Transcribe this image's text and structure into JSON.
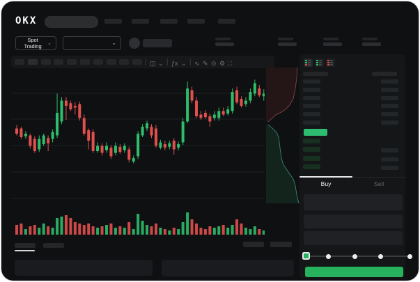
{
  "header": {
    "logo_text": "OKX",
    "nav_item_count": 5
  },
  "market_bar": {
    "pair_selector_label": "Spot Trading",
    "chevron": "⌄",
    "stat_group_count": 4
  },
  "chart_toolbar": {
    "interval_button_count": 10,
    "active_interval_index": 1,
    "separator": "|",
    "icons": [
      {
        "name": "candle-type-icon",
        "glyph": "◫"
      },
      {
        "name": "chevron-down-icon",
        "glyph": "⌄"
      },
      {
        "name": "indicators-icon",
        "glyph": "ƒx"
      },
      {
        "name": "chevron-down-icon",
        "glyph": "⌄"
      },
      {
        "name": "line-tool-icon",
        "glyph": "∿"
      },
      {
        "name": "draw-tool-icon",
        "glyph": "✎"
      },
      {
        "name": "camera-icon",
        "glyph": "⊙"
      },
      {
        "name": "settings-icon",
        "glyph": "⚙"
      },
      {
        "name": "fullscreen-icon",
        "glyph": "⛶"
      }
    ]
  },
  "orderbook": {
    "view_modes": [
      {
        "name": "book-both-icon",
        "colors": [
          "#2ebd6b",
          "#e2504e"
        ],
        "active": true
      },
      {
        "name": "book-buy-icon",
        "colors": [
          "#2ebd6b",
          "#2ebd6b"
        ],
        "active": false
      },
      {
        "name": "book-sell-icon",
        "colors": [
          "#e2504e",
          "#e2504e"
        ],
        "active": false
      }
    ],
    "ask_row_count": 6,
    "bid_row_count": 4,
    "bid_rows_with_amount": [
      1,
      2,
      3
    ],
    "last_price_highlight_color": "#2ebd70"
  },
  "trade_panel": {
    "buy_tab_label": "Buy",
    "sell_tab_label": "Sell",
    "active_tab": "Buy",
    "field_count": 3,
    "slider_dot_count": 4,
    "buy_button_color": "#27b35e"
  },
  "bottom_bar": {
    "tab_count": 2,
    "active_tab_index": 0,
    "right_box_count": 2,
    "panel_count": 2
  },
  "colors": {
    "window_bg": "#0f1012",
    "panel_bg": "#141618",
    "candle_up": "#2ebd6b",
    "candle_down": "#e2504e",
    "grid_line": "#1d1f22",
    "depth_ask_fill": "#241517",
    "depth_ask_line": "#8a4a4a",
    "depth_bid_fill": "#13241c",
    "depth_bid_line": "#3f8f7c"
  },
  "chart_data": {
    "type": "candlestick",
    "title": "",
    "xlabel": "",
    "ylabel": "",
    "x_axis_labels": [],
    "y_axis_labels": [],
    "grid": true,
    "price_scale": [
      0,
      102
    ],
    "candles": [
      [
        46,
        50,
        38,
        40
      ],
      [
        46,
        48,
        34,
        36
      ],
      [
        37,
        43,
        34,
        40
      ],
      [
        38,
        40,
        23,
        26
      ],
      [
        34,
        37,
        18,
        20
      ],
      [
        22,
        38,
        19,
        34
      ],
      [
        28,
        40,
        26,
        38
      ],
      [
        35,
        38,
        20,
        29
      ],
      [
        34,
        45,
        30,
        42
      ],
      [
        38,
        86,
        35,
        64
      ],
      [
        54,
        82,
        51,
        78
      ],
      [
        78,
        82,
        56,
        72
      ],
      [
        75,
        78,
        66,
        68
      ],
      [
        72,
        76,
        62,
        70
      ],
      [
        74,
        77,
        55,
        58
      ],
      [
        58,
        62,
        38,
        40
      ],
      [
        44,
        46,
        22,
        32
      ],
      [
        42,
        45,
        18,
        20
      ],
      [
        20,
        30,
        18,
        26
      ],
      [
        26,
        29,
        15,
        18
      ],
      [
        21,
        30,
        18,
        26
      ],
      [
        24,
        27,
        11,
        14
      ],
      [
        18,
        30,
        15,
        26
      ],
      [
        25,
        28,
        17,
        19
      ],
      [
        21,
        29,
        18,
        26
      ],
      [
        22,
        25,
        7,
        10
      ],
      [
        8,
        15,
        6,
        12
      ],
      [
        14,
        43,
        11,
        40
      ],
      [
        38,
        51,
        36,
        48
      ],
      [
        46,
        55,
        43,
        52
      ],
      [
        48,
        51,
        35,
        38
      ],
      [
        46,
        50,
        24,
        26
      ],
      [
        24,
        33,
        22,
        30
      ],
      [
        28,
        32,
        21,
        24
      ],
      [
        25,
        32,
        22,
        29
      ],
      [
        32,
        35,
        16,
        22
      ],
      [
        24,
        31,
        21,
        28
      ],
      [
        30,
        58,
        27,
        54
      ],
      [
        54,
        100,
        52,
        92
      ],
      [
        90,
        94,
        75,
        78
      ],
      [
        78,
        82,
        58,
        60
      ],
      [
        62,
        66,
        56,
        58
      ],
      [
        64,
        67,
        57,
        59
      ],
      [
        60,
        63,
        48,
        54
      ],
      [
        58,
        66,
        55,
        62
      ],
      [
        58,
        70,
        55,
        66
      ],
      [
        66,
        70,
        60,
        62
      ],
      [
        63,
        72,
        61,
        68
      ],
      [
        66,
        92,
        63,
        88
      ],
      [
        90,
        94,
        74,
        76
      ],
      [
        80,
        83,
        70,
        72
      ],
      [
        74,
        82,
        71,
        78
      ],
      [
        78,
        92,
        75,
        88
      ],
      [
        86,
        102,
        83,
        98
      ],
      [
        92,
        96,
        82,
        84
      ],
      [
        83,
        91,
        78,
        86
      ]
    ],
    "volume": [
      14,
      16,
      8,
      12,
      14,
      10,
      16,
      12,
      10,
      24,
      26,
      28,
      24,
      18,
      16,
      14,
      16,
      12,
      10,
      12,
      14,
      16,
      10,
      12,
      10,
      18,
      8,
      30,
      20,
      14,
      12,
      16,
      10,
      8,
      6,
      10,
      8,
      18,
      32,
      22,
      16,
      10,
      8,
      12,
      10,
      12,
      14,
      10,
      14,
      22,
      16,
      10,
      8,
      12,
      8,
      6
    ],
    "depth": {
      "asks": [
        [
          47,
          2
        ],
        [
          46,
          17
        ],
        [
          44,
          32
        ],
        [
          41,
          47
        ],
        [
          35,
          57
        ],
        [
          30,
          62
        ],
        [
          24,
          66
        ],
        [
          16,
          70
        ],
        [
          5,
          80
        ]
      ],
      "bids": [
        [
          5,
          84
        ],
        [
          12,
          90
        ],
        [
          17,
          95
        ],
        [
          20,
          102
        ],
        [
          22,
          117
        ],
        [
          24,
          132
        ],
        [
          27,
          142
        ],
        [
          34,
          152
        ],
        [
          41,
          162
        ],
        [
          44,
          172
        ],
        [
          46,
          184
        ],
        [
          49,
          197
        ]
      ]
    }
  }
}
